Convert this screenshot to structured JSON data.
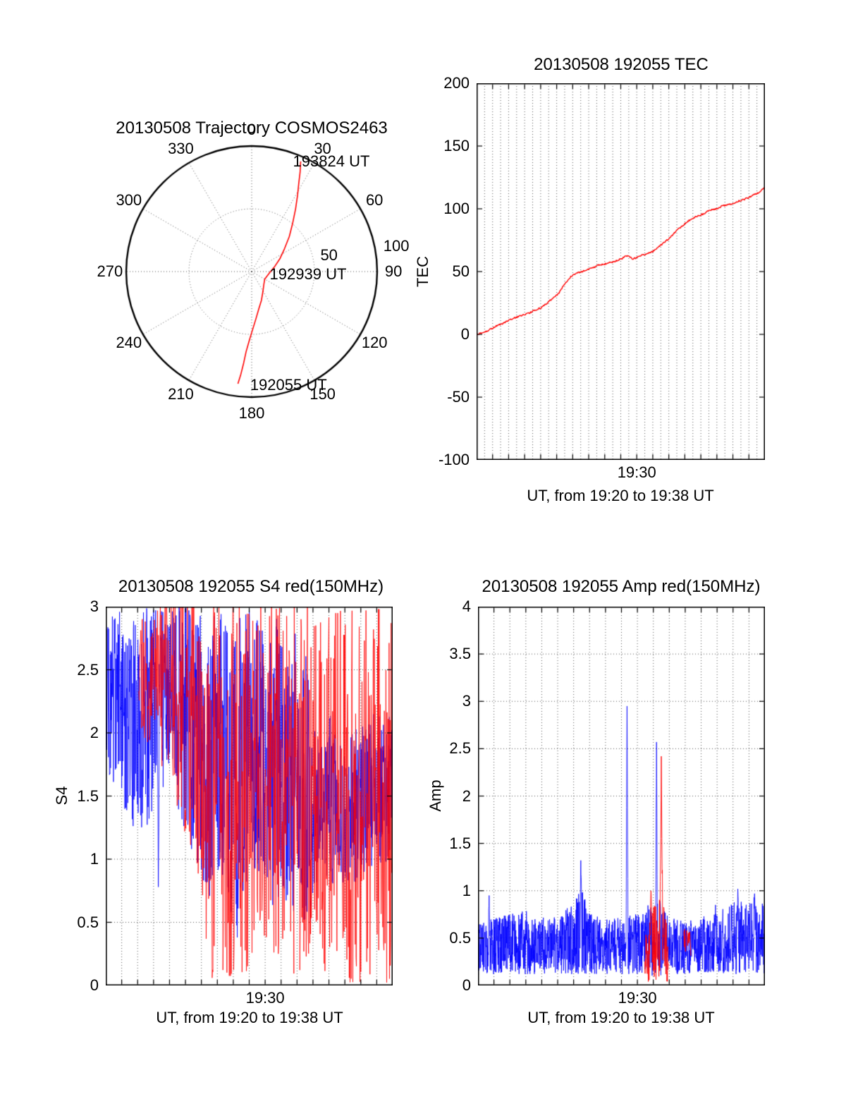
{
  "figure": {
    "background": "#ffffff",
    "colors": {
      "trace_red": "#ff0000",
      "trace_blue": "#0000ff",
      "axis": "#000000",
      "grid": "#555555"
    }
  },
  "chart_data": [
    {
      "id": "trajectory",
      "type": "polar-trajectory",
      "title": "20130508 Trajectory COSMOS2463",
      "azimuth_labels": [
        "0",
        "30",
        "60",
        "90",
        "120",
        "150",
        "180",
        "210",
        "240",
        "270",
        "300",
        "330"
      ],
      "azimuth_step_deg": 30,
      "azimuth_label_radius": 113,
      "rmax": 100,
      "dotted_rings": [
        50
      ],
      "ring_labels": [
        {
          "text": "50",
          "az_deg": 78,
          "r": 63
        },
        {
          "text": "100",
          "az_deg": 80,
          "r": 117
        }
      ],
      "time_annotations": [
        {
          "text": "193824 UT",
          "az_deg": 36,
          "r": 108
        },
        {
          "text": "192939 UT",
          "az_deg": 93,
          "r": 45
        },
        {
          "text": "192055 UT",
          "az_deg": 162,
          "r": 95
        }
      ],
      "trajectory": {
        "name": "COSMOS2463 pass",
        "color": "#ff0000",
        "points_az_r": [
          [
            187,
            90
          ],
          [
            186,
            82
          ],
          [
            185,
            73
          ],
          [
            184,
            64
          ],
          [
            182,
            55
          ],
          [
            179,
            46
          ],
          [
            175,
            38
          ],
          [
            169,
            30
          ],
          [
            161,
            24
          ],
          [
            150,
            18
          ],
          [
            136,
            14
          ],
          [
            120,
            12
          ],
          [
            104,
            13
          ],
          [
            90,
            15
          ],
          [
            77,
            19
          ],
          [
            65,
            25
          ],
          [
            55,
            32
          ],
          [
            47,
            41
          ],
          [
            40,
            51
          ],
          [
            35,
            61
          ],
          [
            31,
            71
          ],
          [
            28,
            80
          ],
          [
            26,
            88
          ],
          [
            24,
            96
          ]
        ]
      }
    },
    {
      "id": "tec",
      "type": "line",
      "title": "20130508 192055 TEC",
      "ylabel": "TEC",
      "xlabel": "UT, from 19:20 to 19:38 UT",
      "x_start": "19:20",
      "x_end": "19:38",
      "xlim_minutes": [
        0,
        18
      ],
      "ylim": [
        -100,
        200
      ],
      "ytick_values": [
        -100,
        -50,
        0,
        50,
        100,
        150,
        200
      ],
      "ytick_labels": [
        "-100",
        "-50",
        "0",
        "50",
        "100",
        "150",
        "200"
      ],
      "xticks": [
        {
          "minute": 10,
          "label": "19:30"
        }
      ],
      "grid_x_step_minutes": 0.5,
      "grid_y": false,
      "series": [
        {
          "name": "TEC",
          "color": "#ff0000",
          "type": "line",
          "line_width": 1.4,
          "points_per_minute": 25,
          "jitter": 0.6,
          "seed": 3,
          "points": [
            [
              0,
              0
            ],
            [
              0.3,
              1
            ],
            [
              0.7,
              3
            ],
            [
              1,
              5
            ],
            [
              1.3,
              7
            ],
            [
              1.7,
              9
            ],
            [
              2,
              11
            ],
            [
              2.3,
              13
            ],
            [
              2.6,
              14
            ],
            [
              3,
              16
            ],
            [
              3.3,
              17
            ],
            [
              3.6,
              19
            ],
            [
              4,
              21
            ],
            [
              4.3,
              24
            ],
            [
              4.6,
              27
            ],
            [
              5,
              31
            ],
            [
              5.2,
              34
            ],
            [
              5.4,
              38
            ],
            [
              5.6,
              42
            ],
            [
              5.8,
              45
            ],
            [
              6,
              47
            ],
            [
              6.3,
              49
            ],
            [
              6.6,
              50
            ],
            [
              7,
              52
            ],
            [
              7.3,
              53
            ],
            [
              7.6,
              55
            ],
            [
              8,
              56
            ],
            [
              8.3,
              57
            ],
            [
              8.6,
              58
            ],
            [
              9,
              60
            ],
            [
              9.3,
              62
            ],
            [
              9.5,
              63
            ],
            [
              9.7,
              60
            ],
            [
              10,
              61
            ],
            [
              10.3,
              63
            ],
            [
              10.6,
              64
            ],
            [
              11,
              66
            ],
            [
              11.3,
              69
            ],
            [
              11.6,
              72
            ],
            [
              12,
              76
            ],
            [
              12.3,
              80
            ],
            [
              12.6,
              84
            ],
            [
              13,
              88
            ],
            [
              13.3,
              91
            ],
            [
              13.6,
              93
            ],
            [
              14,
              95
            ],
            [
              14.3,
              97
            ],
            [
              14.6,
              99
            ],
            [
              15,
              100
            ],
            [
              15.3,
              102
            ],
            [
              15.6,
              103
            ],
            [
              16,
              104
            ],
            [
              16.3,
              106
            ],
            [
              16.6,
              107
            ],
            [
              17,
              109
            ],
            [
              17.3,
              111
            ],
            [
              17.6,
              113
            ],
            [
              18,
              117
            ]
          ]
        }
      ]
    },
    {
      "id": "s4",
      "type": "noise-lines",
      "title": "20130508 192055 S4 red(150MHz)",
      "ylabel": "S4",
      "xlabel": "UT, from 19:20 to 19:38 UT",
      "x_start": "19:20",
      "x_end": "19:38",
      "xlim_minutes": [
        0,
        18
      ],
      "ylim": [
        0,
        3
      ],
      "ytick_values": [
        0,
        0.5,
        1,
        1.5,
        2,
        2.5,
        3
      ],
      "ytick_labels": [
        "0",
        "0.5",
        "1",
        "1.5",
        "2",
        "2.5",
        "3"
      ],
      "xticks": [
        {
          "minute": 10,
          "label": "19:30"
        }
      ],
      "grid_x_step_minutes": 1,
      "grid_y": true,
      "series": [
        {
          "name": "S4 150MHz blue",
          "color": "#0000ff",
          "type": "noise",
          "seed": 7,
          "points_per_minute": 60,
          "line_width": 0.8,
          "envelope": [
            [
              0,
              2.35,
              0.65
            ],
            [
              0.5,
              2.3,
              0.7
            ],
            [
              1,
              2.2,
              0.75
            ],
            [
              1.5,
              2.1,
              0.8
            ],
            [
              2,
              2.05,
              0.85
            ],
            [
              2.5,
              2.1,
              0.9
            ],
            [
              3,
              2.2,
              0.8
            ],
            [
              3.5,
              2.25,
              0.75
            ],
            [
              4,
              2.3,
              0.7
            ],
            [
              4.5,
              2.2,
              0.8
            ],
            [
              5,
              2.1,
              0.9
            ],
            [
              5.5,
              2.0,
              1.0
            ],
            [
              6,
              1.9,
              1.1
            ],
            [
              6.5,
              1.85,
              1.15
            ],
            [
              7,
              1.9,
              1.1
            ],
            [
              7.5,
              1.8,
              1.2
            ],
            [
              8,
              1.7,
              1.2
            ],
            [
              8.5,
              1.8,
              1.2
            ],
            [
              9,
              1.9,
              1.1
            ],
            [
              9.5,
              1.95,
              1.05
            ],
            [
              10,
              1.9,
              1.1
            ],
            [
              10.5,
              1.8,
              1.2
            ],
            [
              11,
              1.7,
              1.1
            ],
            [
              11.5,
              1.6,
              1.0
            ],
            [
              12,
              1.7,
              1.2
            ],
            [
              12.5,
              1.6,
              1.1
            ],
            [
              13,
              1.45,
              0.75
            ],
            [
              13.5,
              1.4,
              0.6
            ],
            [
              14,
              1.5,
              0.7
            ],
            [
              14.5,
              1.45,
              0.65
            ],
            [
              15,
              1.35,
              0.55
            ],
            [
              15.5,
              1.4,
              0.6
            ],
            [
              16,
              1.45,
              0.65
            ],
            [
              16.5,
              1.5,
              0.6
            ],
            [
              17,
              1.55,
              0.65
            ],
            [
              17.5,
              1.5,
              0.6
            ],
            [
              18,
              1.55,
              0.65
            ]
          ],
          "spikes": [
            [
              3.3,
              0.78
            ],
            [
              8.25,
              0.38
            ],
            [
              12.85,
              0.5
            ]
          ]
        },
        {
          "name": "S4 150MHz red",
          "color": "#ff0000",
          "type": "noise",
          "seed": 13,
          "points_per_minute": 40,
          "line_width": 0.8,
          "envelope": [
            [
              0,
              null,
              0
            ],
            [
              1.95,
              null,
              0
            ],
            [
              2.05,
              2.5,
              0.5
            ],
            [
              3,
              2.45,
              0.6
            ],
            [
              4,
              2.4,
              0.85
            ],
            [
              5,
              2.25,
              1.05
            ],
            [
              5.8,
              2.0,
              1.3
            ],
            [
              6.5,
              1.55,
              1.5
            ],
            [
              18,
              1.5,
              1.5
            ]
          ],
          "spikes": []
        }
      ]
    },
    {
      "id": "amp",
      "type": "noise-lines",
      "title": "20130508 192055 Amp red(150MHz)",
      "ylabel": "Amp",
      "xlabel": "UT, from 19:20 to 19:38 UT",
      "x_start": "19:20",
      "x_end": "19:38",
      "xlim_minutes": [
        0,
        18
      ],
      "ylim": [
        0,
        4
      ],
      "ytick_values": [
        0,
        0.5,
        1,
        1.5,
        2,
        2.5,
        3,
        3.5,
        4
      ],
      "ytick_labels": [
        "0",
        "0.5",
        "1",
        "1.5",
        "2",
        "2.5",
        "3",
        "3.5",
        "4"
      ],
      "xticks": [
        {
          "minute": 10,
          "label": "19:30"
        }
      ],
      "grid_x_step_minutes": 1,
      "grid_y": true,
      "series": [
        {
          "name": "Amp 150MHz blue",
          "color": "#0000ff",
          "type": "noise",
          "seed": 11,
          "points_per_minute": 80,
          "line_width": 0.8,
          "envelope": [
            [
              0,
              0.38,
              0.28
            ],
            [
              1,
              0.42,
              0.3
            ],
            [
              2,
              0.44,
              0.32
            ],
            [
              3,
              0.46,
              0.34
            ],
            [
              4,
              0.42,
              0.3
            ],
            [
              5,
              0.42,
              0.3
            ],
            [
              6,
              0.5,
              0.38
            ],
            [
              6.5,
              0.6,
              0.5
            ],
            [
              7,
              0.46,
              0.34
            ],
            [
              8,
              0.42,
              0.3
            ],
            [
              9,
              0.42,
              0.3
            ],
            [
              10,
              0.44,
              0.32
            ],
            [
              11,
              0.5,
              0.4
            ],
            [
              11.5,
              0.5,
              0.4
            ],
            [
              12,
              0.42,
              0.3
            ],
            [
              13,
              0.4,
              0.28
            ],
            [
              14,
              0.42,
              0.3
            ],
            [
              15,
              0.45,
              0.33
            ],
            [
              16,
              0.5,
              0.38
            ],
            [
              17,
              0.52,
              0.4
            ],
            [
              18,
              0.5,
              0.38
            ]
          ],
          "spikes": [
            [
              0.7,
              0.95
            ],
            [
              6.45,
              1.32
            ],
            [
              9.35,
              2.95
            ],
            [
              11.2,
              2.57
            ],
            [
              14.9,
              0.85
            ],
            [
              16.3,
              1.02
            ],
            [
              17.35,
              0.97
            ]
          ]
        },
        {
          "name": "Amp 150MHz red",
          "color": "#ff0000",
          "type": "noise",
          "seed": 17,
          "points_per_minute": 60,
          "line_width": 0.9,
          "envelope": [
            [
              0,
              null,
              0
            ],
            [
              10.35,
              null,
              0
            ],
            [
              10.45,
              0.3,
              0.28
            ],
            [
              11.0,
              0.45,
              0.4
            ],
            [
              11.55,
              0.5,
              0.45
            ],
            [
              11.95,
              0.3,
              0.28
            ],
            [
              12.05,
              null,
              0
            ],
            [
              12.8,
              null,
              0
            ],
            [
              12.9,
              0.45,
              0.15
            ],
            [
              13.35,
              0.42,
              0.14
            ],
            [
              13.45,
              null,
              0
            ],
            [
              18,
              null,
              0
            ]
          ],
          "spikes": [
            [
              10.85,
              1.0
            ],
            [
              11.5,
              2.42
            ],
            [
              13.1,
              0.58
            ]
          ]
        }
      ]
    }
  ]
}
